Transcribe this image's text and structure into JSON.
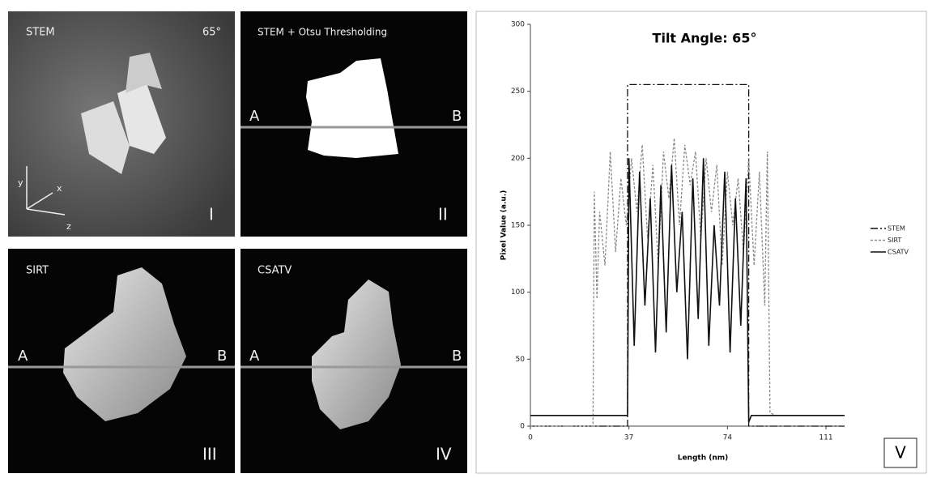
{
  "panels": [
    {
      "title": "STEM",
      "angle": "65°",
      "numeral": "I",
      "axes": [
        "y",
        "x",
        "z"
      ]
    },
    {
      "title": "STEM + Otsu Thresholding",
      "left": "A",
      "right": "B",
      "numeral": "II"
    },
    {
      "title": "SIRT",
      "left": "A",
      "right": "B",
      "numeral": "III"
    },
    {
      "title": "CSATV",
      "left": "A",
      "right": "B",
      "numeral": "IV"
    }
  ],
  "chart_data": {
    "type": "line",
    "title": "Tilt    Angle: 65°",
    "panel_label": "V",
    "x_label": "Length (nm)",
    "y_label": "Pixel  Value (a.u.)",
    "xlim": [
      0,
      118
    ],
    "xticks": [
      0,
      37,
      74,
      111
    ],
    "ylim": [
      0,
      300
    ],
    "yticks": [
      0,
      50,
      100,
      150,
      200,
      250,
      300
    ],
    "legend": "right",
    "series": [
      {
        "name": "STEM",
        "color": "#111111",
        "dash": "dash-dot",
        "x": [
          0,
          36.5,
          36.5,
          82,
          82,
          118
        ],
        "values": [
          0,
          0,
          255,
          255,
          0,
          0
        ]
      },
      {
        "name": "SIRT",
        "color": "#8a8a8a",
        "dash": "dashed",
        "x": [
          0,
          23.5,
          24,
          25,
          26,
          28,
          30,
          32,
          34,
          36,
          38,
          40,
          42,
          44,
          46,
          48,
          50,
          52,
          54,
          56,
          58,
          60,
          62,
          64,
          66,
          68,
          70,
          72,
          74,
          76,
          78,
          80,
          82,
          84,
          86,
          88,
          89,
          90,
          92,
          118
        ],
        "values": [
          0,
          0,
          175,
          95,
          160,
          120,
          205,
          130,
          185,
          150,
          200,
          160,
          210,
          140,
          195,
          120,
          205,
          170,
          215,
          150,
          210,
          180,
          205,
          140,
          200,
          160,
          195,
          120,
          190,
          150,
          185,
          130,
          200,
          120,
          190,
          90,
          205,
          10,
          8,
          8
        ]
      },
      {
        "name": "CSATV",
        "color": "#111111",
        "dash": "solid",
        "x": [
          0,
          36.5,
          37,
          39,
          41,
          43,
          45,
          47,
          49,
          51,
          53,
          55,
          57,
          59,
          61,
          63,
          65,
          67,
          69,
          71,
          73,
          75,
          77,
          79,
          81,
          82,
          83,
          85,
          118
        ],
        "values": [
          8,
          8,
          200,
          60,
          190,
          90,
          170,
          55,
          180,
          70,
          195,
          100,
          160,
          50,
          185,
          80,
          200,
          60,
          150,
          90,
          190,
          55,
          170,
          75,
          185,
          3,
          8,
          8,
          8
        ]
      }
    ]
  }
}
